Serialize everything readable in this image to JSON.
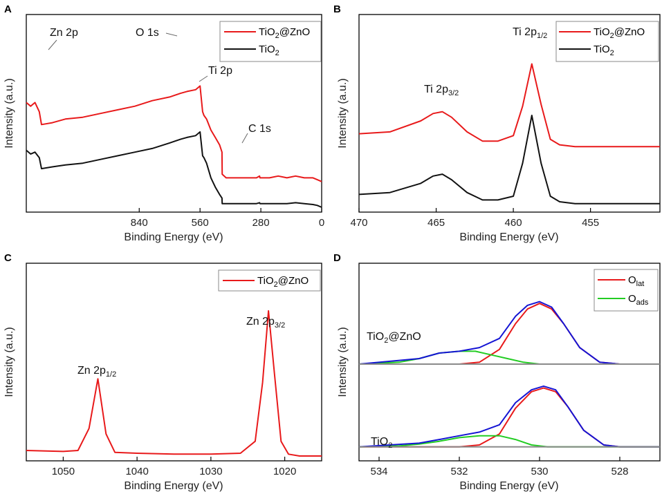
{
  "chart_data": [
    {
      "panel": "A",
      "type": "line",
      "title": "",
      "xlabel": "Binding Energy (eV)",
      "ylabel": "Intensity (a.u.)",
      "xlim": [
        1360,
        0
      ],
      "xticks": [
        "840",
        "560",
        "280",
        "0"
      ],
      "legend": "top-right",
      "annotations": [
        "Zn 2p",
        "O 1s",
        "Ti 2p",
        "C 1s"
      ],
      "series": [
        {
          "name": "TiO2@ZnO",
          "color": "#e8191a",
          "x": [
            1360,
            1340,
            1320,
            1300,
            1290,
            1240,
            1180,
            1100,
            1020,
            940,
            860,
            780,
            700,
            650,
            620,
            580,
            560,
            548,
            542,
            530,
            510,
            490,
            470,
            459,
            458,
            440,
            420,
            380,
            340,
            300,
            286,
            284,
            270,
            240,
            200,
            160,
            120,
            80,
            40,
            20,
            0
          ],
          "y": [
            0.57,
            0.55,
            0.57,
            0.52,
            0.45,
            0.46,
            0.48,
            0.49,
            0.51,
            0.53,
            0.55,
            0.58,
            0.6,
            0.62,
            0.63,
            0.64,
            0.66,
            0.52,
            0.5,
            0.48,
            0.42,
            0.38,
            0.34,
            0.3,
            0.18,
            0.16,
            0.16,
            0.16,
            0.16,
            0.16,
            0.17,
            0.16,
            0.16,
            0.16,
            0.17,
            0.16,
            0.17,
            0.16,
            0.16,
            0.15,
            0.14
          ]
        },
        {
          "name": "TiO2",
          "color": "#111111",
          "x": [
            1360,
            1340,
            1320,
            1300,
            1290,
            1240,
            1180,
            1100,
            1020,
            940,
            860,
            780,
            700,
            650,
            620,
            580,
            560,
            548,
            542,
            530,
            510,
            490,
            470,
            459,
            458,
            440,
            420,
            380,
            340,
            300,
            286,
            284,
            270,
            240,
            200,
            160,
            120,
            80,
            40,
            20,
            0
          ],
          "y": [
            0.31,
            0.29,
            0.3,
            0.27,
            0.21,
            0.22,
            0.23,
            0.24,
            0.26,
            0.28,
            0.3,
            0.32,
            0.35,
            0.37,
            0.38,
            0.39,
            0.41,
            0.28,
            0.27,
            0.24,
            0.16,
            0.11,
            0.07,
            0.05,
            0.02,
            0.02,
            0.02,
            0.02,
            0.02,
            0.02,
            0.025,
            0.02,
            0.02,
            0.02,
            0.02,
            0.02,
            0.025,
            0.02,
            0.015,
            0.01,
            0.0
          ]
        }
      ]
    },
    {
      "panel": "B",
      "type": "line",
      "title": "",
      "xlabel": "Binding Energy (eV)",
      "ylabel": "Intensity (a.u.)",
      "xlim": [
        470,
        450.5
      ],
      "xticks": [
        "470",
        "465",
        "460",
        "455"
      ],
      "legend": "top-right",
      "annotations": [
        "Ti 2p3/2",
        "Ti 2p1/2"
      ],
      "series": [
        {
          "name": "TiO2@ZnO",
          "color": "#e8191a",
          "x": [
            470,
            468,
            466,
            465.2,
            464.6,
            464,
            463,
            462,
            461,
            460,
            459.4,
            458.8,
            458.2,
            457.6,
            457,
            456,
            455,
            452,
            450.5
          ],
          "y": [
            0.4,
            0.41,
            0.47,
            0.51,
            0.52,
            0.49,
            0.41,
            0.36,
            0.36,
            0.39,
            0.55,
            0.78,
            0.56,
            0.37,
            0.34,
            0.33,
            0.33,
            0.33,
            0.33
          ]
        },
        {
          "name": "TiO2",
          "color": "#111111",
          "x": [
            470,
            468,
            466,
            465.2,
            464.6,
            464,
            463,
            462,
            461,
            460,
            459.4,
            458.8,
            458.2,
            457.6,
            457,
            456,
            455,
            452,
            450.5
          ],
          "y": [
            0.07,
            0.08,
            0.13,
            0.17,
            0.18,
            0.15,
            0.08,
            0.04,
            0.04,
            0.06,
            0.24,
            0.5,
            0.24,
            0.06,
            0.03,
            0.02,
            0.02,
            0.02,
            0.02
          ]
        }
      ]
    },
    {
      "panel": "C",
      "type": "line",
      "title": "",
      "xlabel": "Binding Energy (eV)",
      "ylabel": "Intensity (a.u.)",
      "xlim": [
        1055,
        1015
      ],
      "xticks": [
        "1050",
        "1040",
        "1030",
        "1020"
      ],
      "legend": "top-right",
      "annotations": [
        "Zn 2p1/2",
        "Zn 2p3/2"
      ],
      "series": [
        {
          "name": "TiO2@ZnO",
          "color": "#e8191a",
          "x": [
            1055,
            1050,
            1048,
            1046.5,
            1045.3,
            1044.2,
            1043,
            1040,
            1035,
            1030,
            1026,
            1024,
            1023,
            1022.2,
            1021.4,
            1020.5,
            1019.5,
            1018,
            1015
          ],
          "y": [
            0.03,
            0.025,
            0.03,
            0.15,
            0.42,
            0.12,
            0.02,
            0.015,
            0.01,
            0.01,
            0.015,
            0.08,
            0.4,
            0.79,
            0.45,
            0.08,
            0.01,
            0.0,
            0.0
          ]
        }
      ]
    },
    {
      "panel": "D",
      "type": "line",
      "title": "",
      "xlabel": "Binding Energy (eV)",
      "ylabel": "Intensity (a.u.)",
      "xlim": [
        534.5,
        527.0
      ],
      "xticks": [
        "534",
        "532",
        "530",
        "528"
      ],
      "legend": "top-right",
      "annotations": [
        "TiO2@ZnO",
        "TiO2"
      ],
      "series": [
        {
          "name": "Olat",
          "color": "#e8191a",
          "x": [
            534.5,
            533,
            532,
            531.5,
            531,
            530.6,
            530.3,
            530.0,
            529.7,
            529.4,
            529,
            528.5,
            528,
            527
          ],
          "y": [
            0.5,
            0.5,
            0.5,
            0.51,
            0.58,
            0.72,
            0.8,
            0.83,
            0.8,
            0.72,
            0.59,
            0.51,
            0.5,
            0.5
          ]
        },
        {
          "name": "Oads",
          "color": "#22cc22",
          "x": [
            534.5,
            533.5,
            533,
            532.5,
            532,
            531.6,
            531.2,
            530.8,
            530.4,
            530,
            529.5,
            528,
            527
          ],
          "y": [
            0.5,
            0.51,
            0.53,
            0.56,
            0.57,
            0.57,
            0.55,
            0.53,
            0.51,
            0.5,
            0.5,
            0.5,
            0.5
          ]
        },
        {
          "name": "Olat",
          "color": "#e8191a",
          "x": [
            534.5,
            533,
            532,
            531.5,
            531,
            530.6,
            530.2,
            529.9,
            529.6,
            529.3,
            528.9,
            528.4,
            528,
            527
          ],
          "y": [
            0.05,
            0.05,
            0.05,
            0.06,
            0.12,
            0.26,
            0.35,
            0.37,
            0.35,
            0.27,
            0.14,
            0.06,
            0.05,
            0.05
          ]
        },
        {
          "name": "Oads",
          "color": "#22cc22",
          "x": [
            534.5,
            533.5,
            533,
            532.5,
            532,
            531.5,
            531,
            530.6,
            530.2,
            529.8,
            529,
            528,
            527
          ],
          "y": [
            0.05,
            0.055,
            0.065,
            0.08,
            0.1,
            0.11,
            0.11,
            0.09,
            0.06,
            0.05,
            0.05,
            0.05,
            0.05
          ]
        },
        {
          "name": "",
          "color": "#1414d4",
          "x": [
            534.5,
            533,
            532.5,
            532,
            531.5,
            531,
            530.6,
            530.3,
            530.0,
            529.7,
            529.4,
            529,
            528.5,
            528,
            527
          ],
          "y": [
            0.5,
            0.53,
            0.56,
            0.57,
            0.59,
            0.64,
            0.76,
            0.82,
            0.84,
            0.81,
            0.72,
            0.59,
            0.51,
            0.5,
            0.5
          ]
        },
        {
          "name": "",
          "color": "#1414d4",
          "x": [
            534.5,
            533,
            532.5,
            532,
            531.5,
            531,
            530.6,
            530.2,
            529.9,
            529.6,
            529.3,
            528.9,
            528.4,
            528,
            527
          ],
          "y": [
            0.05,
            0.07,
            0.09,
            0.11,
            0.13,
            0.17,
            0.29,
            0.36,
            0.38,
            0.36,
            0.27,
            0.14,
            0.06,
            0.05,
            0.05
          ]
        },
        {
          "name": "",
          "color": "#8a8a8a",
          "x": [
            534.5,
            531,
            527
          ],
          "y": [
            0.5,
            0.5,
            0.5
          ]
        },
        {
          "name": "",
          "color": "#8a8a8a",
          "x": [
            534.5,
            531,
            527
          ],
          "y": [
            0.05,
            0.05,
            0.05
          ]
        }
      ]
    }
  ],
  "text": {
    "panelA": "A",
    "panelB": "B",
    "panelC": "C",
    "panelD": "D",
    "legA1": "TiO",
    "legA1b": "2",
    "legA1c": "@ZnO",
    "legA2": "TiO",
    "legA2b": "2",
    "annZn2p": "Zn 2p",
    "annO1s": "O 1s",
    "annTi2p": "Ti 2p",
    "annC1s": "C 1s",
    "annTi32": "Ti 2p",
    "annTi32s": "3/2",
    "annTi12": "Ti 2p",
    "annTi12s": "1/2",
    "annZn12": "Zn 2p",
    "annZn12s": "1/2",
    "annZn32": "Zn 2p",
    "annZn32s": "3/2",
    "legD1": "O",
    "legD1s": "lat",
    "legD2": "O",
    "legD2s": "ads",
    "annDtop": "TiO",
    "annDtop2": "2",
    "annDtop3": "@ZnO",
    "annDbot": "TiO",
    "annDbot2": "2"
  }
}
